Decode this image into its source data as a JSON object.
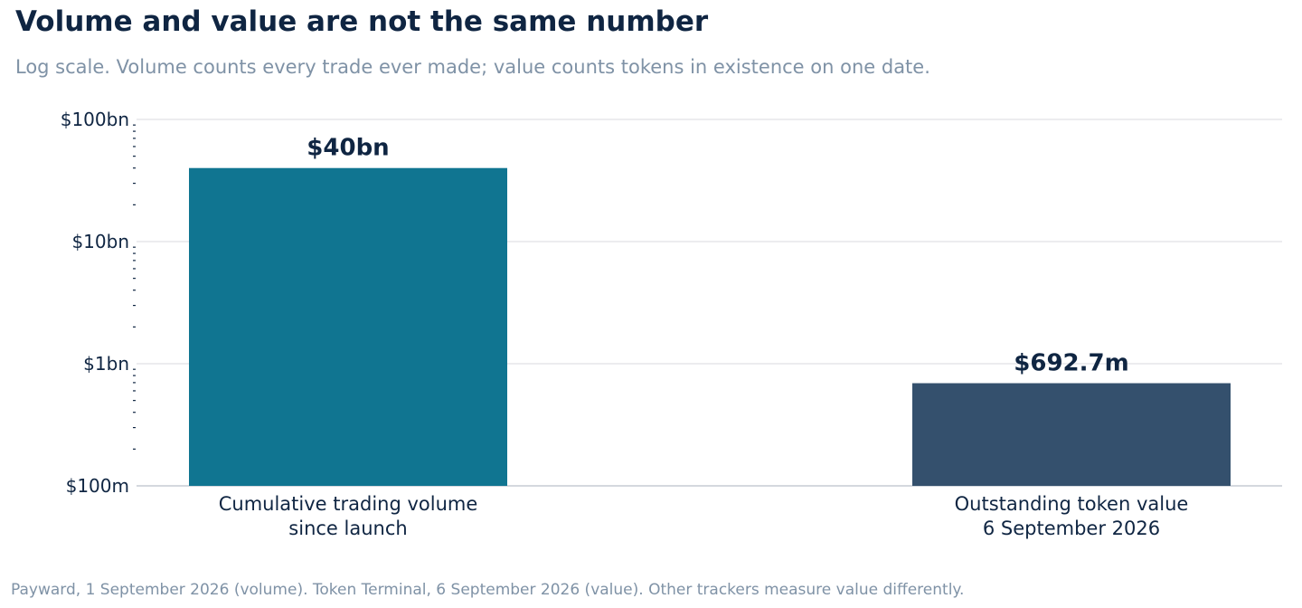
{
  "title": "Volume and value are not the same number",
  "subtitle": "Log scale. Volume counts every trade ever made; value counts tokens in existence on one date.",
  "source": "Payward, 1 September 2026 (volume). Token Terminal, 6 September 2026 (value). Other trackers measure value differently.",
  "chart_data": {
    "type": "bar",
    "yscale": "log",
    "ylim": [
      100000000,
      100000000000
    ],
    "grid": true,
    "yticks": [
      {
        "value": 100000000,
        "label": "$100m"
      },
      {
        "value": 1000000000,
        "label": "$1bn"
      },
      {
        "value": 10000000000,
        "label": "$10bn"
      },
      {
        "value": 100000000000,
        "label": "$100bn"
      }
    ],
    "categories": [
      [
        "Cumulative trading volume",
        "since launch"
      ],
      [
        "Outstanding token value",
        "6 September 2026"
      ]
    ],
    "values": [
      40000000000,
      692700000
    ],
    "data_labels": [
      "$40bn",
      "$692.7m"
    ],
    "colors": [
      "#107591",
      "#34506d"
    ]
  }
}
